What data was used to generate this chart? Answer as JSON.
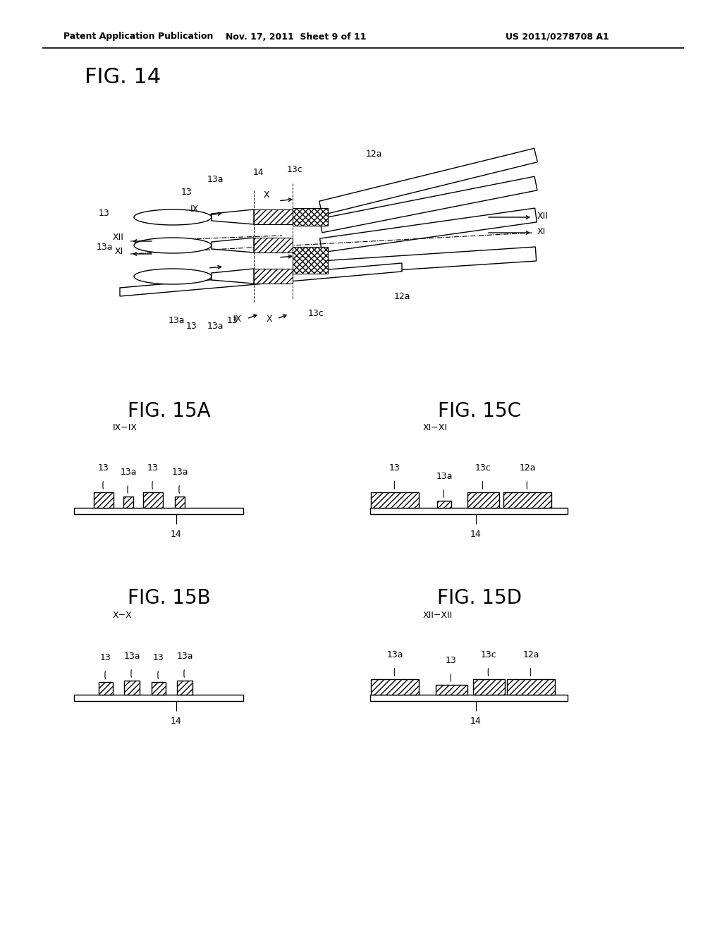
{
  "background_color": "#ffffff",
  "header_left": "Patent Application Publication",
  "header_mid": "Nov. 17, 2011  Sheet 9 of 11",
  "header_right": "US 2011/0278708 A1",
  "fig14_title": "FIG. 14",
  "fig15a_title": "FIG. 15A",
  "fig15b_title": "FIG. 15B",
  "fig15c_title": "FIG. 15C",
  "fig15d_title": "FIG. 15D",
  "fig15a_label": "IX−IX",
  "fig15b_label": "X−X",
  "fig15c_label": "XI−XI",
  "fig15d_label": "XII−XII"
}
